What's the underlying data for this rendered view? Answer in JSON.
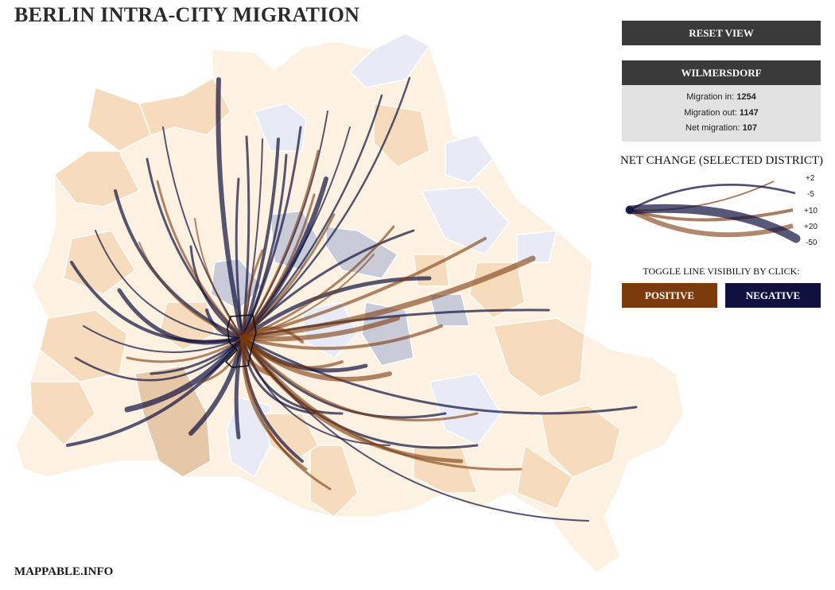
{
  "header": {
    "title": "BERLIN INTRA-CITY MIGRATION"
  },
  "footer": {
    "credit": "MAPPABLE.INFO"
  },
  "controls": {
    "reset_label": "RESET VIEW"
  },
  "selected_district": {
    "name": "WILMERSDORF",
    "migration_in_label": "Migration in:",
    "migration_in": "1254",
    "migration_out_label": "Migration out:",
    "migration_out": "1147",
    "net_migration_label": "Net migration:",
    "net_migration": "107"
  },
  "legend": {
    "title": "NET CHANGE (SELECTED DISTRICT)",
    "items": [
      {
        "label": "+2",
        "value": 2
      },
      {
        "label": "-5",
        "value": -5
      },
      {
        "label": "+10",
        "value": 10
      },
      {
        "label": "+20",
        "value": 20
      },
      {
        "label": "-50",
        "value": -50
      }
    ]
  },
  "toggle": {
    "label": "TOGGLE LINE VISIBILIY BY CLICK:",
    "positive_label": "POSITIVE",
    "negative_label": "NEGATIVE"
  },
  "colors": {
    "positive": "#7b3b0c",
    "negative": "#10113f",
    "dark_button": "#3a3a3a",
    "stats_bg": "#e2e2e2",
    "district_fill_light": "#fdf1e2",
    "district_fill_mid": "#f6dcbd",
    "district_fill_dark": "#e6c7a7",
    "district_fill_blue": "#e8ebf6",
    "district_fill_gray": "#c9cbd9"
  }
}
